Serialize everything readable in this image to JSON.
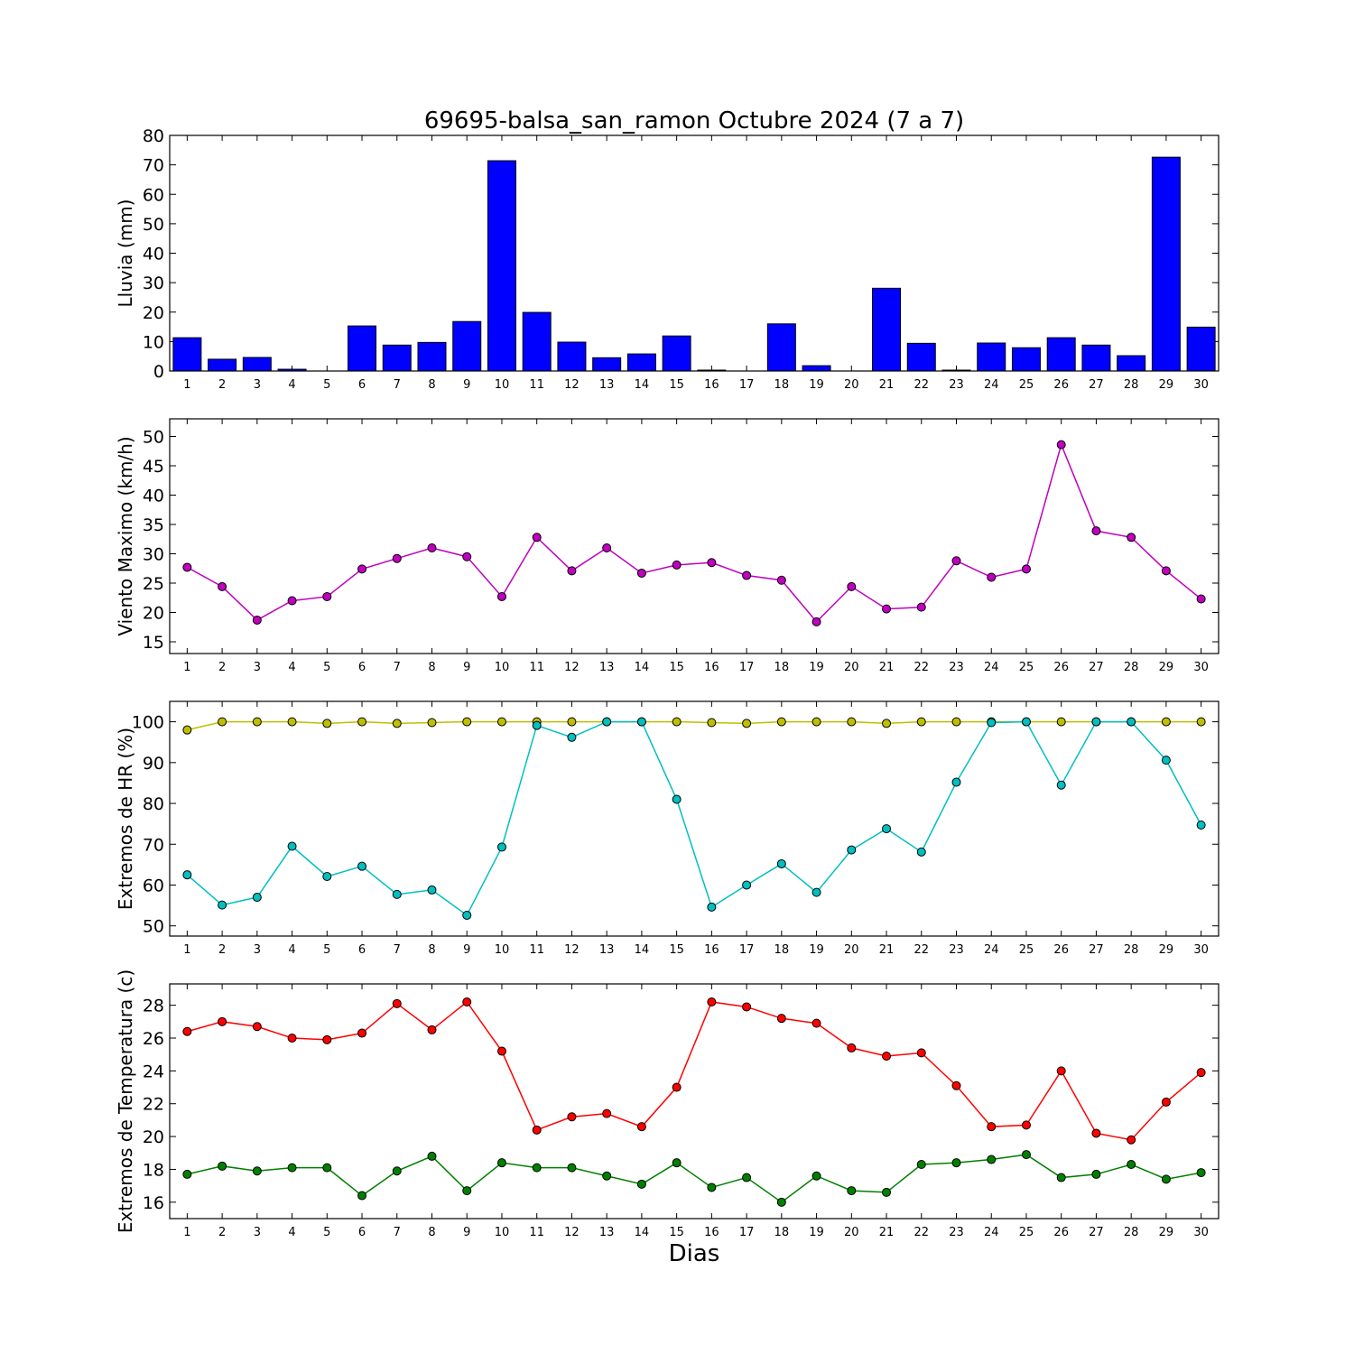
{
  "title": "69695-balsa_san_ramon Octubre 2024  (7 a 7)",
  "xlabel": "Dias",
  "days": [
    1,
    2,
    3,
    4,
    5,
    6,
    7,
    8,
    9,
    10,
    11,
    12,
    13,
    14,
    15,
    16,
    17,
    18,
    19,
    20,
    21,
    22,
    23,
    24,
    25,
    26,
    27,
    28,
    29,
    30
  ],
  "colors": {
    "lluvia": "#0000ff",
    "viento": "#bf00bf",
    "hr_max": "#bfbf00",
    "hr_min": "#00bfbf",
    "temp_max": "#ff0000",
    "temp_min": "#008000"
  },
  "chart_data": [
    {
      "type": "bar",
      "ylabel": "Lluvia (mm)",
      "ylim": [
        0,
        80
      ],
      "yticks": [
        0,
        10,
        20,
        30,
        40,
        50,
        60,
        70,
        80
      ],
      "categories": [
        1,
        2,
        3,
        4,
        5,
        6,
        7,
        8,
        9,
        10,
        11,
        12,
        13,
        14,
        15,
        16,
        17,
        18,
        19,
        20,
        21,
        22,
        23,
        24,
        25,
        26,
        27,
        28,
        29,
        30
      ],
      "values": [
        11.3,
        4.0,
        4.6,
        0.6,
        0,
        15.3,
        8.8,
        9.7,
        16.8,
        71.4,
        19.9,
        9.8,
        4.5,
        5.8,
        11.9,
        0.3,
        0,
        16.0,
        1.8,
        0,
        28.1,
        9.4,
        0.3,
        9.5,
        7.9,
        11.3,
        8.8,
        5.2,
        72.6,
        14.9
      ],
      "grid": false
    },
    {
      "type": "line",
      "ylabel": "Viento Maximo (km/h)",
      "ylim": [
        13,
        53
      ],
      "yticks": [
        15,
        20,
        25,
        30,
        35,
        40,
        45,
        50
      ],
      "x": [
        1,
        2,
        3,
        4,
        5,
        6,
        7,
        8,
        9,
        10,
        11,
        12,
        13,
        14,
        15,
        16,
        17,
        18,
        19,
        20,
        21,
        22,
        23,
        24,
        25,
        26,
        27,
        28,
        29,
        30
      ],
      "series": [
        {
          "values": [
            27.7,
            24.4,
            18.7,
            22.0,
            22.7,
            27.4,
            29.2,
            31.0,
            29.5,
            22.7,
            32.8,
            27.1,
            31.0,
            26.7,
            28.1,
            28.5,
            26.3,
            25.5,
            18.4,
            24.4,
            20.6,
            20.9,
            28.8,
            26.0,
            27.4,
            48.6,
            33.9,
            32.8,
            27.1,
            22.3
          ]
        }
      ],
      "grid": false
    },
    {
      "type": "line",
      "ylabel": "Extremos de HR (%)",
      "ylim": [
        47.5,
        105
      ],
      "yticks": [
        50,
        60,
        70,
        80,
        90,
        100
      ],
      "x": [
        1,
        2,
        3,
        4,
        5,
        6,
        7,
        8,
        9,
        10,
        11,
        12,
        13,
        14,
        15,
        16,
        17,
        18,
        19,
        20,
        21,
        22,
        23,
        24,
        25,
        26,
        27,
        28,
        29,
        30
      ],
      "series": [
        {
          "values": [
            98.0,
            100,
            100,
            100,
            99.6,
            100,
            99.6,
            99.8,
            100,
            100,
            100,
            100,
            100,
            100,
            100,
            99.8,
            99.6,
            100,
            100,
            100,
            99.6,
            100,
            100,
            100,
            100,
            100,
            100,
            100,
            100,
            100
          ]
        },
        {
          "values": [
            62.5,
            55.1,
            57.0,
            69.5,
            62.1,
            64.6,
            57.7,
            58.8,
            52.6,
            69.3,
            99.1,
            96.2,
            100,
            100,
            81.0,
            54.6,
            60.0,
            65.2,
            58.2,
            68.6,
            73.8,
            68.1,
            85.2,
            99.8,
            100,
            84.5,
            100,
            100,
            90.6,
            74.7
          ]
        }
      ],
      "grid": false
    },
    {
      "type": "line",
      "ylabel": "Extremos de Temperatura (c)",
      "ylim": [
        15,
        29.3
      ],
      "yticks": [
        16,
        18,
        20,
        22,
        24,
        26,
        28
      ],
      "x": [
        1,
        2,
        3,
        4,
        5,
        6,
        7,
        8,
        9,
        10,
        11,
        12,
        13,
        14,
        15,
        16,
        17,
        18,
        19,
        20,
        21,
        22,
        23,
        24,
        25,
        26,
        27,
        28,
        29,
        30
      ],
      "series": [
        {
          "values": [
            26.4,
            27.0,
            26.7,
            26.0,
            25.9,
            26.3,
            28.1,
            26.5,
            28.2,
            25.2,
            20.4,
            21.2,
            21.4,
            20.6,
            23.0,
            28.2,
            27.9,
            27.2,
            26.9,
            25.4,
            24.9,
            25.1,
            23.1,
            20.6,
            20.7,
            24.0,
            20.2,
            19.8,
            22.1,
            23.9
          ]
        },
        {
          "values": [
            17.7,
            18.2,
            17.9,
            18.1,
            18.1,
            16.4,
            17.9,
            18.8,
            16.7,
            18.4,
            18.1,
            18.1,
            17.6,
            17.1,
            18.4,
            16.9,
            17.5,
            16.0,
            17.6,
            16.7,
            16.6,
            18.3,
            18.4,
            18.6,
            18.9,
            17.5,
            17.7,
            18.3,
            17.4,
            17.8
          ]
        }
      ],
      "grid": false
    }
  ]
}
